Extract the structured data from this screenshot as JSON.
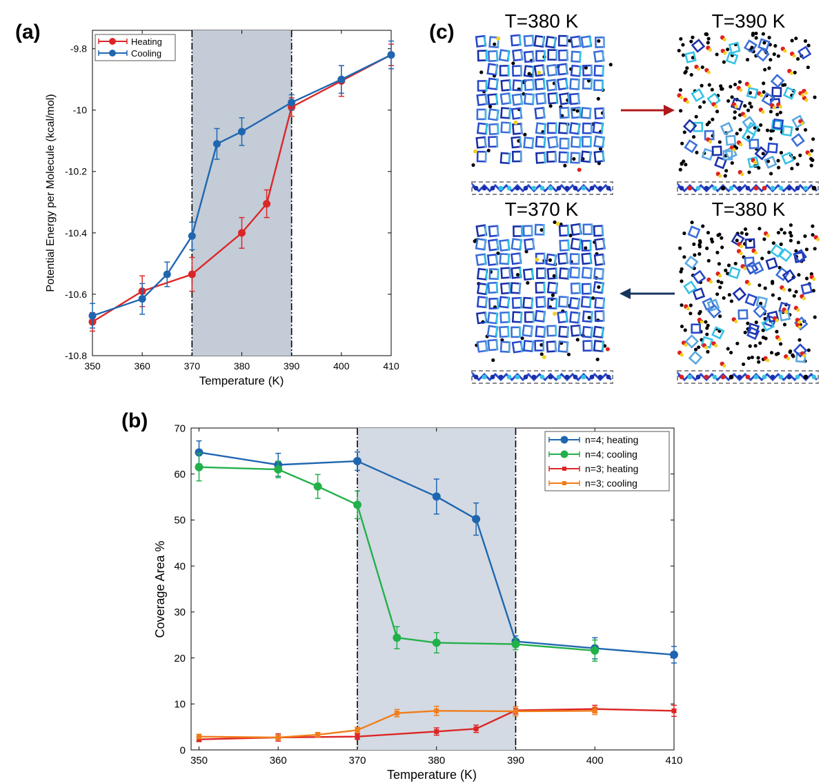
{
  "panel_labels": {
    "a": "(a)",
    "b": "(b)",
    "c": "(c)"
  },
  "colors": {
    "heating_a": "#dc2626",
    "cooling_a": "#1f66b0",
    "n4_heating": "#1f66b0",
    "n4_cooling": "#22b04a",
    "n3_heating": "#dc2626",
    "n3_cooling": "#f07d1a",
    "shade": "#c3ccd7",
    "arrow_heat": "#b0191b",
    "arrow_cool": "#17365d"
  },
  "chart_data": [
    {
      "id": "a",
      "type": "line",
      "xlabel": "Temperature (K)",
      "ylabel": "Potential Energy per Molecule (kcal/mol)",
      "xlim": [
        350,
        410
      ],
      "ylim": [
        -10.8,
        -9.74
      ],
      "xticks": [
        350,
        360,
        370,
        380,
        390,
        400,
        410
      ],
      "xtick_labels": [
        "350",
        "360",
        "370",
        "380",
        "390",
        "400",
        "410"
      ],
      "yticks": [
        -10.8,
        -10.6,
        -10.4,
        -10.2,
        -10.0,
        -9.8
      ],
      "ytick_labels": [
        "-10.8",
        "-10.6",
        "-10.4",
        "-10.2",
        "-10",
        "-9.8"
      ],
      "shaded_region": [
        370,
        390
      ],
      "legend": "top-left",
      "series": [
        {
          "name": "Heating",
          "color": "#dc2626",
          "x": [
            350,
            360,
            370,
            380,
            385,
            390,
            400,
            410
          ],
          "y": [
            -10.69,
            -10.59,
            -10.535,
            -10.4,
            -10.305,
            -9.99,
            -9.905,
            -9.82
          ],
          "err": [
            0.03,
            0.05,
            0.055,
            0.05,
            0.045,
            0.03,
            0.05,
            0.035
          ]
        },
        {
          "name": "Cooling",
          "color": "#1f66b0",
          "x": [
            350,
            360,
            365,
            370,
            375,
            380,
            390,
            400,
            410
          ],
          "y": [
            -10.67,
            -10.615,
            -10.535,
            -10.41,
            -10.11,
            -10.07,
            -9.975,
            -9.9,
            -9.82
          ],
          "err": [
            0.04,
            0.05,
            0.04,
            0.045,
            0.05,
            0.045,
            0.025,
            0.045,
            0.045
          ]
        }
      ]
    },
    {
      "id": "b",
      "type": "line",
      "xlabel": "Temperature (K)",
      "ylabel": "Coverage Area %",
      "xlim": [
        349,
        410
      ],
      "ylim": [
        0,
        70
      ],
      "xticks": [
        350,
        360,
        370,
        380,
        390,
        400,
        410
      ],
      "xtick_labels": [
        "350",
        "360",
        "370",
        "380",
        "390",
        "400",
        "410"
      ],
      "yticks": [
        0,
        10,
        20,
        30,
        40,
        50,
        60,
        70
      ],
      "ytick_labels": [
        "0",
        "10",
        "20",
        "30",
        "40",
        "50",
        "60",
        "70"
      ],
      "shaded_region": [
        370,
        390
      ],
      "legend": "top-right",
      "series": [
        {
          "name": "n=4; heating",
          "color": "#1f66b0",
          "marker": "circle",
          "x": [
            350,
            360,
            370,
            380,
            385,
            390,
            400,
            410
          ],
          "y": [
            64.7,
            62.0,
            62.8,
            55.1,
            50.2,
            23.6,
            22.1,
            20.7
          ],
          "err": [
            2.5,
            2.5,
            2.0,
            3.8,
            3.5,
            1.2,
            2.3,
            1.8
          ]
        },
        {
          "name": "n=4; cooling",
          "color": "#22b04a",
          "marker": "circle",
          "x": [
            350,
            360,
            365,
            370,
            375,
            380,
            390,
            400
          ],
          "y": [
            61.5,
            61.0,
            57.3,
            53.3,
            24.4,
            23.3,
            23.0,
            21.6
          ],
          "err": [
            3.0,
            1.8,
            2.6,
            3.0,
            2.4,
            2.2,
            1.2,
            2.3
          ]
        },
        {
          "name": "n=3; heating",
          "color": "#dc2626",
          "marker": "square",
          "x": [
            350,
            360,
            370,
            380,
            385,
            390,
            400,
            410
          ],
          "y": [
            2.3,
            2.7,
            2.9,
            4.0,
            4.6,
            8.6,
            8.9,
            8.5
          ],
          "err": [
            0.5,
            0.8,
            0.6,
            0.8,
            0.8,
            0.8,
            0.8,
            1.2
          ]
        },
        {
          "name": "n=3; cooling",
          "color": "#f07d1a",
          "marker": "square",
          "x": [
            350,
            360,
            365,
            370,
            375,
            380,
            390,
            400
          ],
          "y": [
            2.9,
            2.7,
            3.3,
            4.3,
            8.0,
            8.5,
            8.4,
            8.5
          ],
          "err": [
            0.5,
            0.5,
            0.5,
            0.6,
            0.8,
            1.0,
            1.0,
            0.8
          ]
        }
      ]
    }
  ],
  "snapshots": [
    {
      "id": "heat-before",
      "title": "T=380 K",
      "state": "ordered"
    },
    {
      "id": "heat-after",
      "title": "T=390 K",
      "state": "disordered"
    },
    {
      "id": "cool-after",
      "title": "T=370 K",
      "state": "ordered"
    },
    {
      "id": "cool-before",
      "title": "T=380 K",
      "state": "disordered"
    }
  ]
}
